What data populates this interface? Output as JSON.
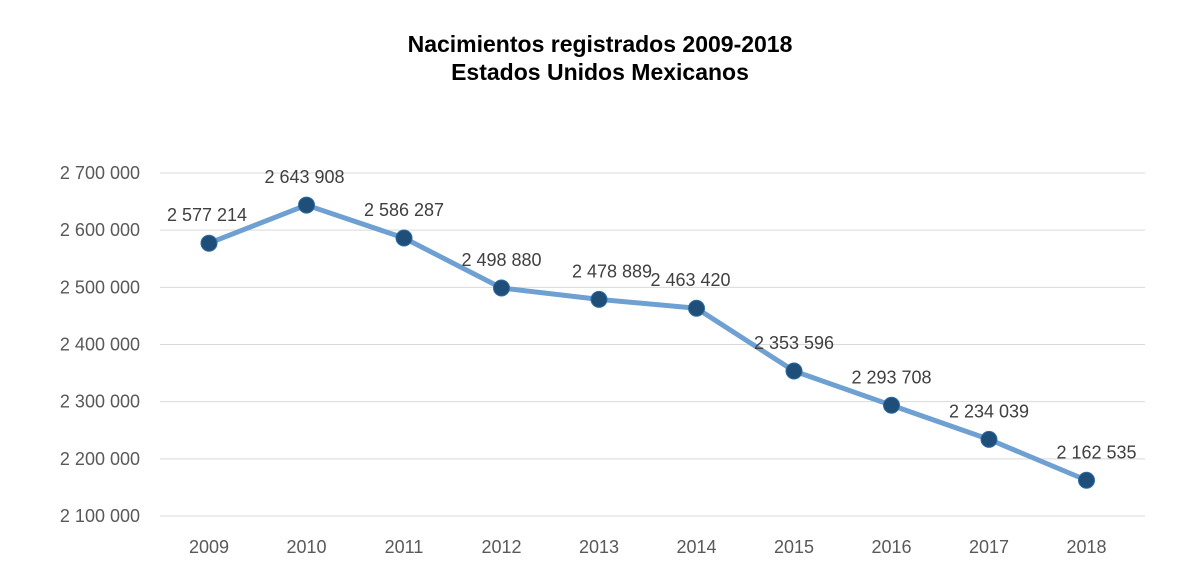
{
  "chart_data": {
    "type": "line",
    "title": "Nacimientos registrados 2009-2018",
    "subtitle": "Estados Unidos Mexicanos",
    "xlabel": "",
    "ylabel": "",
    "categories": [
      "2009",
      "2010",
      "2011",
      "2012",
      "2013",
      "2014",
      "2015",
      "2016",
      "2017",
      "2018"
    ],
    "series": [
      {
        "values": [
          2577214,
          2643908,
          2586287,
          2498880,
          2478889,
          2463420,
          2353596,
          2293708,
          2234039,
          2162535
        ],
        "data_labels": [
          "2 577 214",
          "2 643 908",
          "2 586 287",
          "2 498 880",
          "2 478 889",
          "2 463 420",
          "2 353 596",
          "2 293 708",
          "2 234 039",
          "2 162 535"
        ]
      }
    ],
    "ylim": [
      2100000,
      2700000
    ],
    "yticks": [
      2700000,
      2600000,
      2500000,
      2400000,
      2300000,
      2200000,
      2100000
    ],
    "ytick_labels": [
      "2 700 000",
      "2 600 000",
      "2 500 000",
      "2 400 000",
      "2 300 000",
      "2 200 000",
      "2 100 000"
    ],
    "grid": true,
    "legend": "none",
    "colors": {
      "line": "#6fa0d2",
      "marker": "#1f4e79",
      "grid": "#d9d9d9"
    }
  }
}
